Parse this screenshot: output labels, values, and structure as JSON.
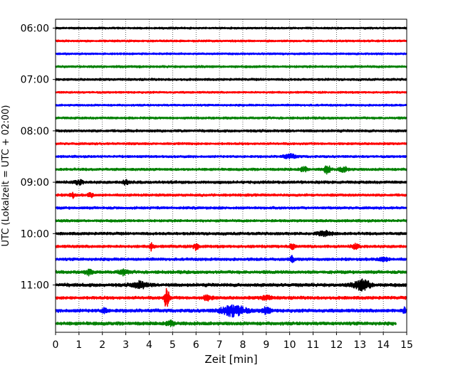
{
  "chart_data": {
    "type": "line",
    "title": "",
    "xlabel": "Zeit  [min]",
    "ylabel": "UTC (Lokalzeit = UTC + 02:00)",
    "xlim": [
      0,
      15
    ],
    "x_ticks": [
      0,
      1,
      2,
      3,
      4,
      5,
      6,
      7,
      8,
      9,
      10,
      11,
      12,
      13,
      14,
      15
    ],
    "x_tick_labels": [
      "0",
      "1",
      "2",
      "3",
      "4",
      "5",
      "6",
      "7",
      "8",
      "9",
      "10",
      "11",
      "12",
      "13",
      "14",
      "15"
    ],
    "y_tick_labels": [
      "06:00",
      "07:00",
      "08:00",
      "09:00",
      "10:00",
      "11:00"
    ],
    "y_tick_trace_index": [
      0,
      4,
      8,
      12,
      16,
      20
    ],
    "grid": "vertical-dotted",
    "trace_interval_minutes": 15,
    "color_cycle": [
      "#000000",
      "#ff0000",
      "#0000ff",
      "#008000"
    ],
    "traces": [
      {
        "start": "06:00",
        "color": "#000000",
        "amplitude": 0.35,
        "bursts": []
      },
      {
        "start": "06:15",
        "color": "#ff0000",
        "amplitude": 0.35,
        "bursts": []
      },
      {
        "start": "06:30",
        "color": "#0000ff",
        "amplitude": 0.35,
        "bursts": []
      },
      {
        "start": "06:45",
        "color": "#008000",
        "amplitude": 0.4,
        "bursts": []
      },
      {
        "start": "07:00",
        "color": "#000000",
        "amplitude": 0.4,
        "bursts": []
      },
      {
        "start": "07:15",
        "color": "#ff0000",
        "amplitude": 0.35,
        "bursts": []
      },
      {
        "start": "07:30",
        "color": "#0000ff",
        "amplitude": 0.35,
        "bursts": []
      },
      {
        "start": "07:45",
        "color": "#008000",
        "amplitude": 0.4,
        "bursts": []
      },
      {
        "start": "08:00",
        "color": "#000000",
        "amplitude": 0.45,
        "bursts": []
      },
      {
        "start": "08:15",
        "color": "#ff0000",
        "amplitude": 0.4,
        "bursts": []
      },
      {
        "start": "08:30",
        "color": "#0000ff",
        "amplitude": 0.4,
        "bursts": [
          {
            "t": 10.0,
            "amp": 0.6,
            "width": 0.3
          }
        ]
      },
      {
        "start": "08:45",
        "color": "#008000",
        "amplitude": 0.45,
        "bursts": [
          {
            "t": 10.6,
            "amp": 0.9,
            "width": 0.15
          },
          {
            "t": 11.6,
            "amp": 1.5,
            "width": 0.12
          },
          {
            "t": 12.3,
            "amp": 0.7,
            "width": 0.2
          }
        ]
      },
      {
        "start": "09:00",
        "color": "#000000",
        "amplitude": 0.5,
        "bursts": [
          {
            "t": 1.0,
            "amp": 0.8,
            "width": 0.15
          },
          {
            "t": 3.0,
            "amp": 0.8,
            "width": 0.12
          }
        ]
      },
      {
        "start": "09:15",
        "color": "#ff0000",
        "amplitude": 0.45,
        "bursts": [
          {
            "t": 0.7,
            "amp": 1.0,
            "width": 0.1
          },
          {
            "t": 1.5,
            "amp": 0.8,
            "width": 0.1
          }
        ]
      },
      {
        "start": "09:30",
        "color": "#0000ff",
        "amplitude": 0.45,
        "bursts": []
      },
      {
        "start": "09:45",
        "color": "#008000",
        "amplitude": 0.45,
        "bursts": []
      },
      {
        "start": "10:00",
        "color": "#000000",
        "amplitude": 0.5,
        "bursts": [
          {
            "t": 11.5,
            "amp": 0.7,
            "width": 0.3
          }
        ]
      },
      {
        "start": "10:15",
        "color": "#ff0000",
        "amplitude": 0.5,
        "bursts": [
          {
            "t": 4.1,
            "amp": 1.2,
            "width": 0.08
          },
          {
            "t": 6.0,
            "amp": 1.1,
            "width": 0.12
          },
          {
            "t": 10.1,
            "amp": 0.9,
            "width": 0.1
          },
          {
            "t": 12.8,
            "amp": 0.7,
            "width": 0.15
          }
        ]
      },
      {
        "start": "10:30",
        "color": "#0000ff",
        "amplitude": 0.5,
        "bursts": [
          {
            "t": 10.1,
            "amp": 0.9,
            "width": 0.1
          },
          {
            "t": 14.0,
            "amp": 0.7,
            "width": 0.2
          }
        ]
      },
      {
        "start": "10:45",
        "color": "#008000",
        "amplitude": 0.55,
        "bursts": [
          {
            "t": 1.4,
            "amp": 0.8,
            "width": 0.15
          },
          {
            "t": 2.9,
            "amp": 0.8,
            "width": 0.2
          }
        ]
      },
      {
        "start": "11:00",
        "color": "#000000",
        "amplitude": 0.6,
        "bursts": [
          {
            "t": 3.6,
            "amp": 1.0,
            "width": 0.3
          },
          {
            "t": 13.1,
            "amp": 1.6,
            "width": 0.35
          }
        ]
      },
      {
        "start": "11:15",
        "color": "#ff0000",
        "amplitude": 0.55,
        "bursts": [
          {
            "t": 4.75,
            "amp": 3.5,
            "width": 0.1
          },
          {
            "t": 6.5,
            "amp": 0.7,
            "width": 0.2
          },
          {
            "t": 9.0,
            "amp": 0.7,
            "width": 0.2
          }
        ]
      },
      {
        "start": "11:30",
        "color": "#0000ff",
        "amplitude": 0.6,
        "bursts": [
          {
            "t": 2.1,
            "amp": 0.9,
            "width": 0.1
          },
          {
            "t": 7.6,
            "amp": 1.8,
            "width": 0.5
          },
          {
            "t": 9.0,
            "amp": 0.9,
            "width": 0.2
          },
          {
            "t": 14.9,
            "amp": 0.9,
            "width": 0.08
          }
        ]
      },
      {
        "start": "11:45",
        "color": "#008000",
        "amplitude": 0.6,
        "bursts": [
          {
            "t": 4.9,
            "amp": 0.8,
            "width": 0.2
          }
        ],
        "end_minute": 14.55
      }
    ]
  }
}
